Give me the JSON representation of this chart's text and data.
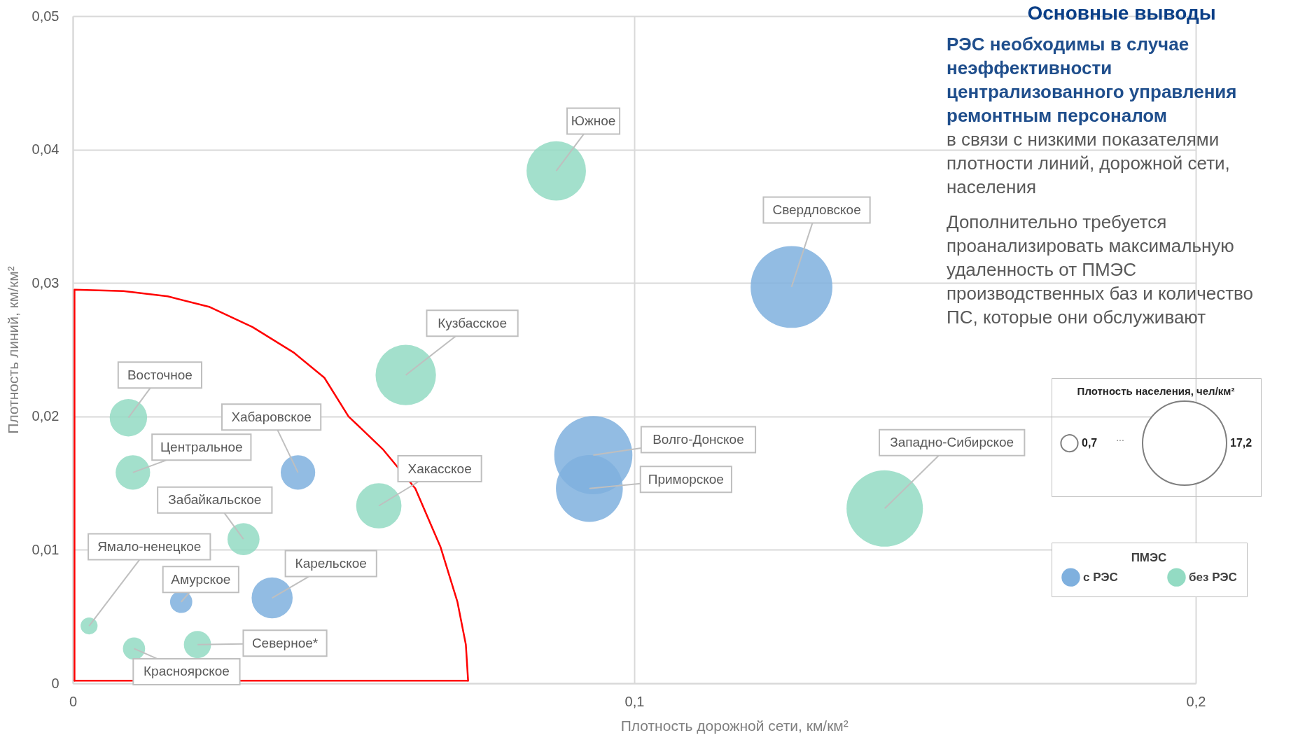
{
  "chart_data": {
    "type": "bubble",
    "xlabel": "Плотность дорожной сети, км/км²",
    "ylabel": "Плотность линий, км/км²",
    "legend_title": "ПМЭС",
    "xlim": [
      0,
      0.2
    ],
    "ylim": [
      0,
      0.05
    ],
    "xticks": [
      0,
      {
        "value": 0.1,
        "label": "0,1"
      },
      {
        "value": 0.2,
        "label": "0,2"
      }
    ],
    "yticks": [
      0,
      {
        "value": 0.01,
        "label": "0,01"
      },
      {
        "value": 0.02,
        "label": "0,02"
      },
      {
        "value": 0.03,
        "label": "0,03"
      },
      {
        "value": 0.04,
        "label": "0,04"
      },
      {
        "value": 0.05,
        "label": "0,05"
      }
    ],
    "size_legend": [
      {
        "value": 0.7,
        "label": "0,7"
      },
      {
        "value": 17.2,
        "label": "17,2"
      }
    ],
    "grid": true,
    "legend": "right",
    "series": [
      {
        "name": "с РЭС",
        "color": "#7fb0de",
        "x": [
          0.0401,
          0.0193,
          0.0355,
          0.0927,
          0.092,
          0.128
        ],
        "values": [
          0.0158,
          0.0061,
          0.0064,
          0.0171,
          0.0146,
          0.0297
        ],
        "sizes": [
          2.9,
          1.2,
          4.1,
          14.9,
          10.9,
          16.3
        ]
      },
      {
        "name": "без РЭС",
        "color": "#93dbc3",
        "x": [
          0.0861,
          0.0593,
          0.0099,
          0.0107,
          0.0545,
          0.0304,
          0.0029,
          0.0109,
          0.0222,
          0.1446
        ],
        "values": [
          0.0384,
          0.0231,
          0.0199,
          0.0158,
          0.0133,
          0.0108,
          0.0043,
          0.0026,
          0.0029,
          0.0131
        ],
        "sizes": [
          8.6,
          8.9,
          3.4,
          2.9,
          5.0,
          2.5,
          0.7,
          1.2,
          1.8,
          14.2
        ]
      },
      {
        "type": "line",
        "color": "#ff0000",
        "x": [
          0.0003,
          0.0003,
          0.009,
          0.0169,
          0.0244,
          0.032,
          0.0393,
          0.0448,
          0.0491,
          0.0553,
          0.061,
          0.0655,
          0.0685,
          0.07,
          0.0704
        ],
        "values": [
          0.0002,
          0.0295,
          0.0294,
          0.029,
          0.0282,
          0.0267,
          0.0248,
          0.0229,
          0.02,
          0.0175,
          0.0146,
          0.0102,
          0.0061,
          0.0029,
          0.0002
        ]
      },
      {
        "type": "line",
        "color": "#ff0000",
        "x": [
          0.0003,
          0.0704
        ],
        "values": [
          0.0002,
          0.0002
        ]
      }
    ],
    "annotations": [
      "Основные выводы",
      "РЭС необходимы в случае неэффективности централизованного управления ремонтным персоналом",
      "в связи с низкими показателями плотности линий, дорожной сети, населения",
      "Дополнительно требуется проанализировать максимальную удаленность от ПМЭС производственных баз и количество ПС, которые они обслуживают",
      "Плотность населения, чел/км²",
      "...",
      {
        "text": "Хабаровское",
        "x": 0.0401,
        "y": 0.0158
      },
      {
        "text": "Амурское",
        "x": 0.0193,
        "y": 0.0061
      },
      {
        "text": "Карельское",
        "x": 0.0355,
        "y": 0.0064
      },
      {
        "text": "Волго-Донское",
        "x": 0.0927,
        "y": 0.0171
      },
      {
        "text": "Приморское",
        "x": 0.092,
        "y": 0.0146
      },
      {
        "text": "Свердловское",
        "x": 0.128,
        "y": 0.0297
      },
      {
        "text": "Южное",
        "x": 0.0861,
        "y": 0.0384
      },
      {
        "text": "Кузбасское",
        "x": 0.0593,
        "y": 0.0231
      },
      {
        "text": "Восточное",
        "x": 0.0099,
        "y": 0.0199
      },
      {
        "text": "Центральное",
        "x": 0.0107,
        "y": 0.0158
      },
      {
        "text": "Хакасское",
        "x": 0.0545,
        "y": 0.0133
      },
      {
        "text": "Забайкальское",
        "x": 0.0304,
        "y": 0.0108
      },
      {
        "text": "Ямало-ненецкое",
        "x": 0.0029,
        "y": 0.0043
      },
      {
        "text": "Красноярское",
        "x": 0.0109,
        "y": 0.0026
      },
      {
        "text": "Северное*",
        "x": 0.0222,
        "y": 0.0029
      },
      {
        "text": "Западно-Сибирское",
        "x": 0.1446,
        "y": 0.0131
      }
    ]
  }
}
